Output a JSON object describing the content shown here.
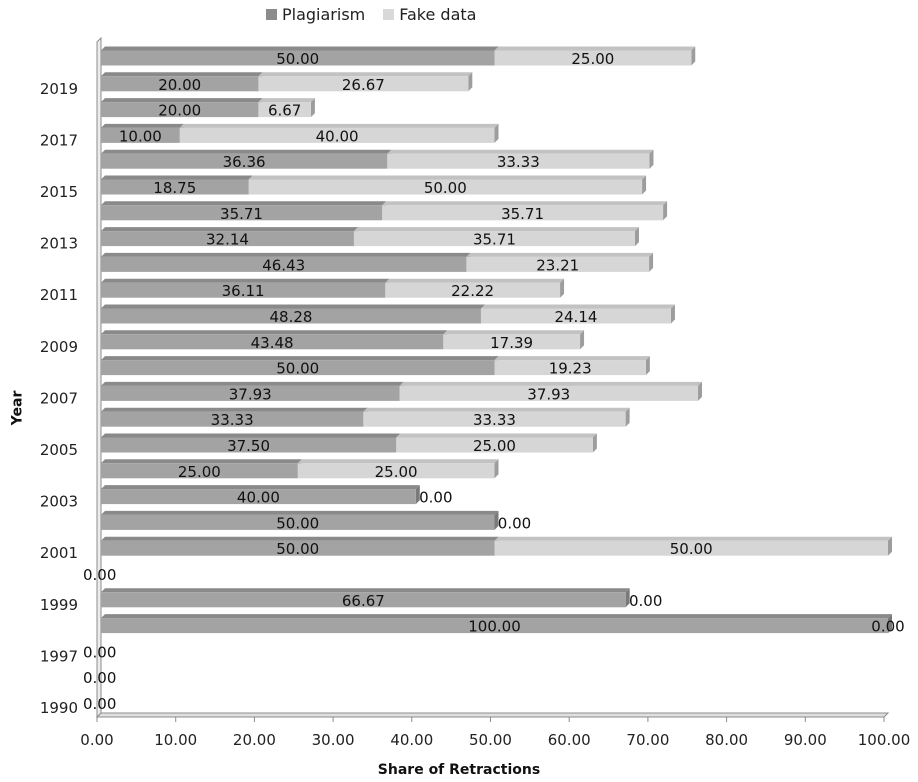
{
  "chart_data": {
    "type": "bar",
    "orientation": "horizontal",
    "stacked": true,
    "xlabel": "Share of Retractions",
    "ylabel": "Year",
    "xlim": [
      0,
      100
    ],
    "x_ticks": [
      "0.00",
      "10.00",
      "20.00",
      "30.00",
      "40.00",
      "50.00",
      "60.00",
      "70.00",
      "80.00",
      "90.00",
      "100.00"
    ],
    "y_tick_labels": [
      "1990",
      "1997",
      "1999",
      "2001",
      "2003",
      "2005",
      "2007",
      "2009",
      "2011",
      "2013",
      "2015",
      "2017",
      "2019"
    ],
    "legend_position": "top",
    "series": [
      {
        "name": "Plagiarism",
        "color": "#a6a6a6",
        "values": [
          0,
          0,
          0,
          100,
          66.67,
          0,
          50,
          50,
          40,
          25,
          37.5,
          33.33,
          37.93,
          50,
          43.48,
          48.28,
          36.11,
          46.43,
          32.14,
          35.71,
          18.75,
          36.36,
          10,
          20,
          20,
          50
        ],
        "labels": [
          "0.00",
          "0.00",
          "0.00",
          "100.00",
          "66.67",
          "0.00",
          "50.00",
          "50.00",
          "40.00",
          "25.00",
          "37.50",
          "33.33",
          "37.93",
          "50.00",
          "43.48",
          "48.28",
          "36.11",
          "46.43",
          "32.14",
          "35.71",
          "18.75",
          "36.36",
          "10.00",
          "20.00",
          "20.00",
          "50.00"
        ]
      },
      {
        "name": "Fake data",
        "color": "#d9d9d9",
        "values": [
          0,
          0,
          0,
          0,
          0,
          0,
          50,
          0,
          0,
          25,
          25,
          33.33,
          37.93,
          19.23,
          17.39,
          24.14,
          22.22,
          23.21,
          35.71,
          35.71,
          50,
          33.33,
          40,
          6.67,
          26.67,
          25
        ],
        "labels": [
          "",
          "",
          "",
          "0.00",
          "0.00",
          "",
          "50.00",
          "0.00",
          "0.00",
          "25.00",
          "25.00",
          "33.33",
          "37.93",
          "19.23",
          "17.39",
          "24.14",
          "22.22",
          "23.21",
          "35.71",
          "35.71",
          "50.00",
          "33.33",
          "40.00",
          "6.67",
          "26.67",
          "25.00"
        ]
      }
    ]
  }
}
